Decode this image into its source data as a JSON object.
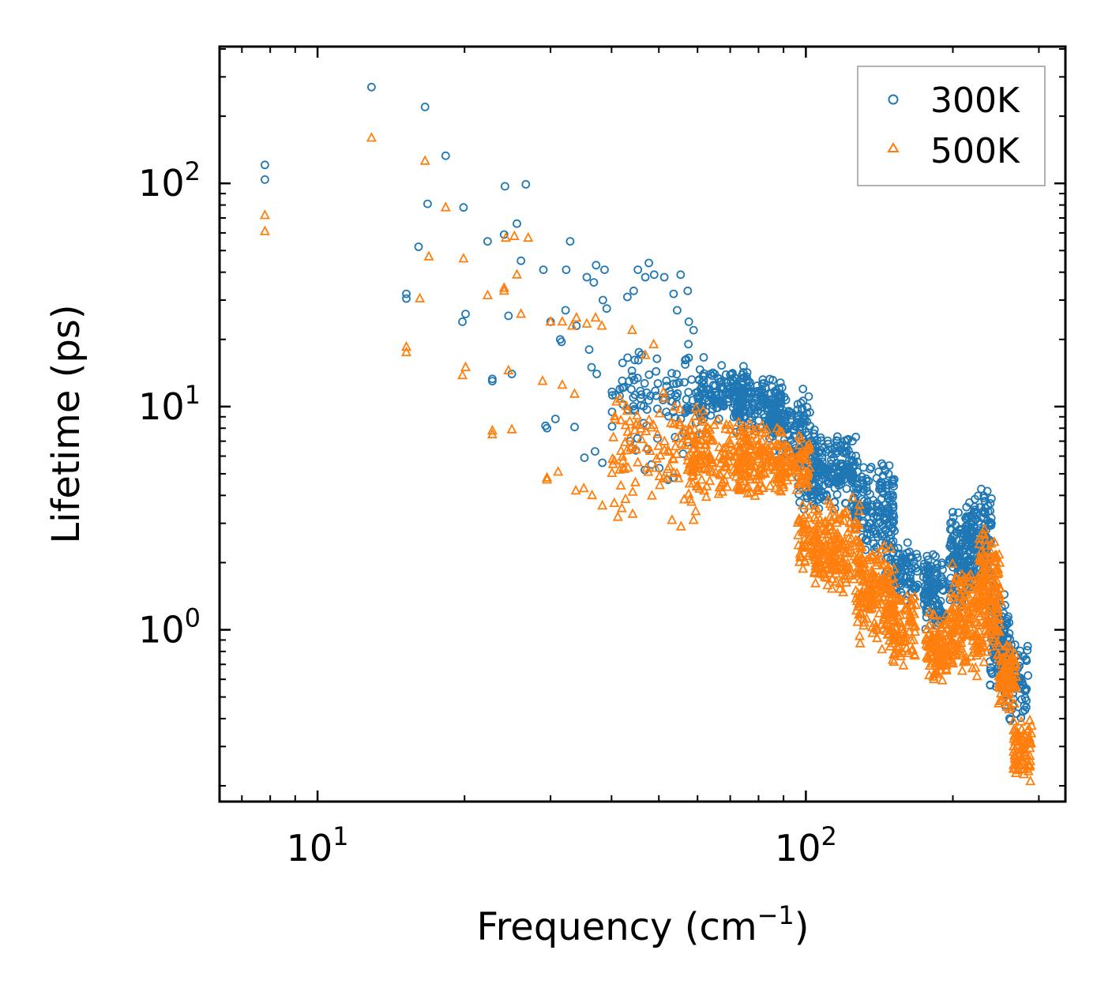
{
  "chart_data": {
    "type": "scatter",
    "xscale": "log",
    "yscale": "log",
    "xlim": [
      6.3,
      340
    ],
    "ylim": [
      0.17,
      410
    ],
    "xlabel": "Frequency (cm",
    "xlabel_sup": "−1",
    "xlabel_close": ")",
    "ylabel": "Lifetime (ps)",
    "xticks": [
      {
        "value": 10,
        "base": "10",
        "exp": "1"
      },
      {
        "value": 100,
        "base": "10",
        "exp": "2"
      }
    ],
    "yticks": [
      {
        "value": 1,
        "base": "10",
        "exp": "0"
      },
      {
        "value": 10,
        "base": "10",
        "exp": "1"
      },
      {
        "value": 100,
        "base": "10",
        "exp": "2"
      }
    ],
    "legend_position": "top-right",
    "colors": {
      "300K": "#1f77b4",
      "500K": "#ff7f0e",
      "axis": "#000000",
      "legend_border": "#999999"
    },
    "series": [
      {
        "name": "300K",
        "marker": "circle",
        "points": [
          [
            7.8,
            121
          ],
          [
            7.8,
            104
          ],
          [
            12.9,
            270
          ],
          [
            16.6,
            220
          ],
          [
            18.3,
            133
          ],
          [
            16.8,
            81
          ],
          [
            19.9,
            78
          ],
          [
            16.1,
            52
          ],
          [
            15.2,
            32
          ],
          [
            15.2,
            30.5
          ],
          [
            20.1,
            26
          ],
          [
            19.8,
            24
          ],
          [
            24.2,
            97
          ],
          [
            26.7,
            99
          ],
          [
            22.3,
            55
          ],
          [
            24.1,
            59
          ],
          [
            25.6,
            66
          ],
          [
            26.1,
            45
          ],
          [
            24.6,
            25.5
          ],
          [
            22.8,
            13.3
          ],
          [
            22.8,
            13
          ],
          [
            25,
            14
          ],
          [
            29,
            41
          ],
          [
            32.3,
            41
          ],
          [
            32.9,
            55
          ],
          [
            30,
            24
          ],
          [
            31.4,
            20
          ],
          [
            31.6,
            19.5
          ],
          [
            32.2,
            27
          ],
          [
            33.9,
            23
          ],
          [
            35.6,
            38
          ],
          [
            36.8,
            36
          ],
          [
            37.2,
            43
          ],
          [
            38.7,
            41
          ],
          [
            38.4,
            30
          ],
          [
            39.1,
            27.5
          ],
          [
            36,
            18
          ],
          [
            36.4,
            15
          ],
          [
            37.3,
            14
          ],
          [
            41.6,
            12
          ],
          [
            29.3,
            8.2
          ],
          [
            29.5,
            8
          ],
          [
            30.7,
            8.8
          ],
          [
            33.6,
            8.1
          ],
          [
            35.2,
            5.9
          ],
          [
            37,
            6.3
          ],
          [
            38.3,
            5.6
          ],
          [
            43.1,
            31
          ],
          [
            44.4,
            33
          ],
          [
            45.3,
            41
          ],
          [
            46.9,
            38
          ],
          [
            47.7,
            44
          ],
          [
            48.9,
            39
          ],
          [
            51.3,
            38
          ],
          [
            53.6,
            32
          ],
          [
            55.4,
            39
          ],
          [
            57.3,
            33
          ],
          [
            54.5,
            27
          ],
          [
            57.6,
            24
          ],
          [
            58.9,
            22
          ],
          [
            43.2,
            9.7
          ],
          [
            45.2,
            7.2
          ],
          [
            46.8,
            5.2
          ],
          [
            48.3,
            5.5
          ],
          [
            50.1,
            5.3
          ],
          [
            53.6,
            4.8
          ],
          [
            52.2,
            4.7
          ]
        ],
        "bands": [
          {
            "x": [
              40,
              62
            ],
            "lo": 5.5,
            "hi": 22,
            "n": 110
          },
          {
            "x": [
              60,
              76
            ],
            "lo": 8.5,
            "hi": 15.5,
            "n": 150
          },
          {
            "x": [
              72,
              90
            ],
            "lo": 7.5,
            "hi": 14,
            "n": 150
          },
          {
            "x": [
              84,
              102
            ],
            "lo": 5.5,
            "hi": 12.5,
            "n": 110
          },
          {
            "x": [
              95,
              108
            ],
            "lo": 3.2,
            "hi": 9.8,
            "n": 60
          },
          {
            "x": [
              102,
              128
            ],
            "lo": 3.4,
            "hi": 7.8,
            "n": 170
          },
          {
            "x": [
              124,
              152
            ],
            "lo": 2.0,
            "hi": 5.8,
            "n": 170
          },
          {
            "x": [
              145,
              170
            ],
            "lo": 1.3,
            "hi": 2.6,
            "n": 100
          },
          {
            "x": [
              174,
              192
            ],
            "lo": 0.95,
            "hi": 2.3,
            "n": 110
          },
          {
            "x": [
              196,
              214
            ],
            "lo": 1.2,
            "hi": 3.6,
            "n": 110
          },
          {
            "x": [
              212,
              240
            ],
            "lo": 1.4,
            "hi": 4.5,
            "n": 180
          },
          {
            "x": [
              238,
              262
            ],
            "lo": 0.5,
            "hi": 1.6,
            "n": 110
          },
          {
            "x": [
              255,
              285
            ],
            "lo": 0.36,
            "hi": 0.95,
            "n": 80
          }
        ]
      },
      {
        "name": "500K",
        "marker": "triangle",
        "points": [
          [
            7.8,
            72
          ],
          [
            7.8,
            61
          ],
          [
            12.9,
            160
          ],
          [
            16.6,
            126
          ],
          [
            18.3,
            78
          ],
          [
            16.9,
            47
          ],
          [
            19.9,
            46
          ],
          [
            16.2,
            30.5
          ],
          [
            15.2,
            18.5
          ],
          [
            15.2,
            17.5
          ],
          [
            20.1,
            15
          ],
          [
            19.8,
            13.8
          ],
          [
            22.3,
            31.5
          ],
          [
            24.1,
            34
          ],
          [
            24.1,
            33
          ],
          [
            24.3,
            57
          ],
          [
            25.3,
            58
          ],
          [
            25.6,
            39
          ],
          [
            27,
            57
          ],
          [
            26.1,
            26
          ],
          [
            24.6,
            14.5
          ],
          [
            22.8,
            7.8
          ],
          [
            22.8,
            7.5
          ],
          [
            25,
            7.9
          ],
          [
            30,
            24
          ],
          [
            31.7,
            24
          ],
          [
            33.2,
            23
          ],
          [
            33.9,
            25
          ],
          [
            35.6,
            23.5
          ],
          [
            37.1,
            25
          ],
          [
            38.2,
            23
          ],
          [
            28.9,
            13
          ],
          [
            31.7,
            12.5
          ],
          [
            33.6,
            11.4
          ],
          [
            29.5,
            4.7
          ],
          [
            29.5,
            4.8
          ],
          [
            31.1,
            5.1
          ],
          [
            33.8,
            4.2
          ],
          [
            35.1,
            4.3
          ],
          [
            36.5,
            4
          ],
          [
            38.3,
            3.6
          ],
          [
            41.2,
            3.2
          ],
          [
            42,
            3.5
          ],
          [
            44.2,
            3.3
          ],
          [
            44.1,
            22
          ],
          [
            46.9,
            17
          ],
          [
            48.8,
            19
          ],
          [
            51.3,
            10.9
          ],
          [
            53.6,
            5.8
          ],
          [
            53.2,
            3.1
          ],
          [
            55.5,
            2.9
          ],
          [
            57.3,
            5.2
          ],
          [
            58.9,
            3.1
          ]
        ],
        "bands": [
          {
            "x": [
              40,
              62
            ],
            "lo": 3.2,
            "hi": 12.5,
            "n": 110
          },
          {
            "x": [
              58,
              76
            ],
            "lo": 3.6,
            "hi": 9.5,
            "n": 150
          },
          {
            "x": [
              72,
              90
            ],
            "lo": 3.8,
            "hi": 8.5,
            "n": 150
          },
          {
            "x": [
              88,
              102
            ],
            "lo": 4.2,
            "hi": 7.5,
            "n": 80
          },
          {
            "x": [
              96,
              106
            ],
            "lo": 1.6,
            "hi": 3.9,
            "n": 60
          },
          {
            "x": [
              104,
              130
            ],
            "lo": 1.4,
            "hi": 4.0,
            "n": 180
          },
          {
            "x": [
              126,
              152
            ],
            "lo": 0.8,
            "hi": 2.6,
            "n": 170
          },
          {
            "x": [
              146,
              168
            ],
            "lo": 0.68,
            "hi": 1.5,
            "n": 100
          },
          {
            "x": [
              176,
              196
            ],
            "lo": 0.55,
            "hi": 1.25,
            "n": 110
          },
          {
            "x": [
              198,
              226
            ],
            "lo": 0.6,
            "hi": 2.0,
            "n": 150
          },
          {
            "x": [
              226,
              250
            ],
            "lo": 0.65,
            "hi": 3.0,
            "n": 160
          },
          {
            "x": [
              248,
              270
            ],
            "lo": 0.42,
            "hi": 0.9,
            "n": 90
          },
          {
            "x": [
              266,
              290
            ],
            "lo": 0.2,
            "hi": 0.42,
            "n": 80
          }
        ]
      }
    ]
  }
}
